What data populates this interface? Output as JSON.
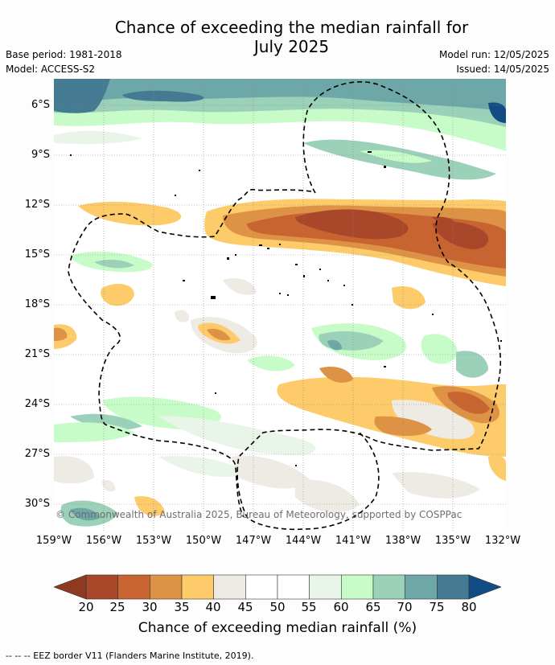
{
  "title_line1": "Chance of exceeding the median rainfall for",
  "title_line2": "July 2025",
  "base_period": "Base period: 1981-2018",
  "model": "Model: ACCESS-S2",
  "model_run": "Model run: 12/05/2025",
  "issued": "Issued: 14/05/2025",
  "lat_labels": [
    "6°S",
    "9°S",
    "12°S",
    "15°S",
    "18°S",
    "21°S",
    "24°S",
    "27°S",
    "30°S"
  ],
  "lon_labels": [
    "159°W",
    "156°W",
    "153°W",
    "150°W",
    "147°W",
    "144°W",
    "141°W",
    "138°W",
    "135°W",
    "132°W"
  ],
  "copyright": "© Commonwealth of Australia 2025, Bureau of Meteorology, supported by COSPPac",
  "colorbar": {
    "label": "Chance of exceeding median rainfall (%)",
    "ticks": [
      "20",
      "25",
      "30",
      "35",
      "40",
      "45",
      "50",
      "55",
      "60",
      "65",
      "70",
      "75",
      "80"
    ],
    "colors": [
      "#a9472a",
      "#c8642f",
      "#de9246",
      "#fdcb6a",
      "#eeebe4",
      "#ffffff",
      "#ffffff",
      "#e9f5e9",
      "#c7fcc9",
      "#9cd1b9",
      "#6ea7a7",
      "#447a92"
    ],
    "under_color": "#8e3a22",
    "over_color": "#134c85"
  },
  "legend_text": "--  --  -- EEZ border V11 (Flanders Marine Institute, 2019)."
}
